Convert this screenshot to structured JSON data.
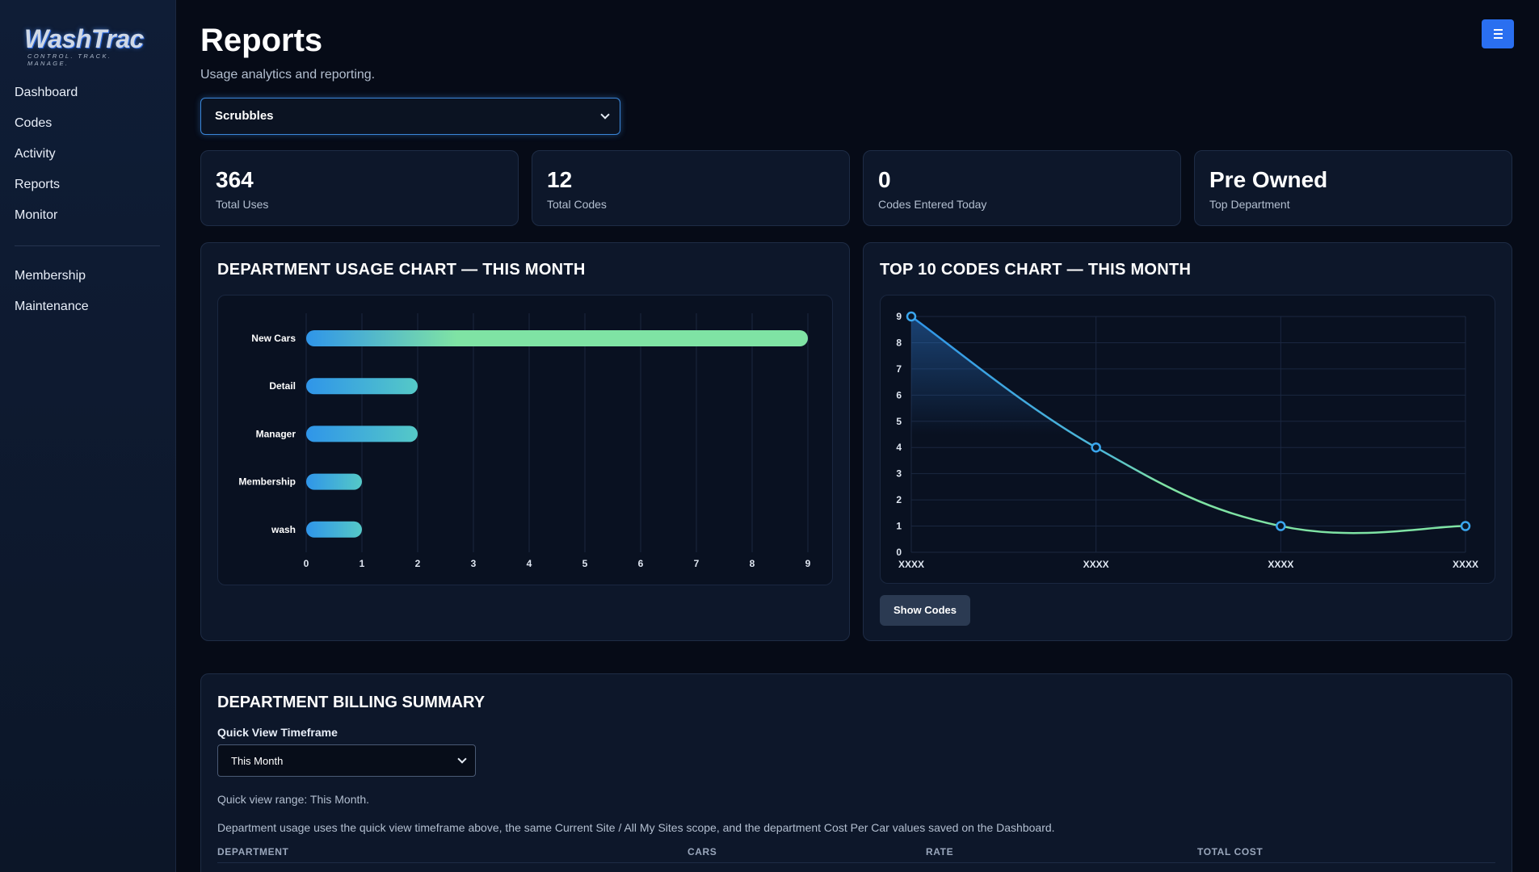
{
  "sidebar": {
    "logo": "WashTrac",
    "tagline": "CONTROL. TRACK. MANAGE.",
    "nav_primary": [
      "Dashboard",
      "Codes",
      "Activity",
      "Reports",
      "Monitor"
    ],
    "nav_secondary": [
      "Membership",
      "Maintenance"
    ]
  },
  "header": {
    "title": "Reports",
    "subtitle": "Usage analytics and reporting.",
    "menu_icon": "hamburger-icon"
  },
  "site_select": {
    "value": "Scrubbles"
  },
  "stats": [
    {
      "value": "364",
      "label": "Total Uses"
    },
    {
      "value": "12",
      "label": "Total Codes"
    },
    {
      "value": "0",
      "label": "Codes Entered Today"
    },
    {
      "value": "Pre Owned",
      "label": "Top Department"
    }
  ],
  "dept_chart": {
    "title": "DEPARTMENT USAGE CHART — THIS MONTH",
    "chart_data": {
      "type": "bar",
      "orientation": "horizontal",
      "categories": [
        "New Cars",
        "Detail",
        "Manager",
        "Membership",
        "wash"
      ],
      "values": [
        9,
        2,
        2,
        1,
        1
      ],
      "xlim": [
        0,
        9
      ],
      "xticks": [
        "0",
        "1",
        "2",
        "3",
        "4",
        "5",
        "6",
        "7",
        "8",
        "9"
      ],
      "grid": true,
      "colors": {
        "start": "#2f95e9",
        "end": "#7fe3a4"
      }
    }
  },
  "codes_chart": {
    "title": "TOP 10 CODES CHART — THIS MONTH",
    "show_button": "Show Codes",
    "chart_data": {
      "type": "line",
      "categories": [
        "XXXX",
        "XXXX",
        "XXXX",
        "XXXX"
      ],
      "values": [
        9,
        4,
        1,
        1
      ],
      "ylim": [
        0,
        9
      ],
      "yticks": [
        "0",
        "1",
        "2",
        "3",
        "4",
        "5",
        "6",
        "7",
        "8",
        "9"
      ],
      "grid": true,
      "colors": {
        "start": "#2f95e9",
        "end": "#7fe3a4"
      }
    }
  },
  "billing": {
    "title": "DEPARTMENT BILLING SUMMARY",
    "timeframe_label": "Quick View Timeframe",
    "timeframe_value": "This Month",
    "range_note": "Quick view range: This Month.",
    "usage_note": "Department usage uses the quick view timeframe above, the same Current Site / All My Sites scope, and the department Cost Per Car values saved on the Dashboard.",
    "columns": [
      "DEPARTMENT",
      "CARS",
      "RATE",
      "TOTAL COST"
    ]
  }
}
